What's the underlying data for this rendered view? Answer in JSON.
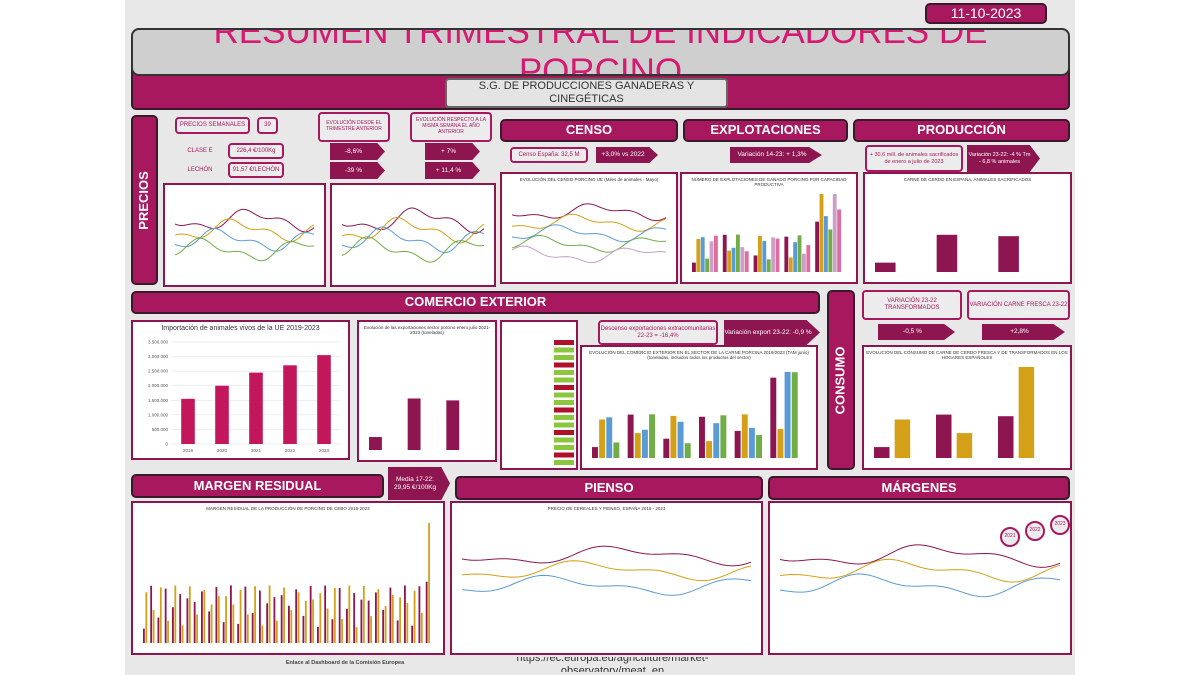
{
  "header": {
    "date": "11-10-2023",
    "title": "RESUMEN TRIMESTRAL DE INDICADORES DE PORCINO",
    "subtitle": "S.G. DE PRODUCCIONES GANADERAS Y CINEGÉTICAS"
  },
  "precios": {
    "section": "PRECIOS",
    "weekly_label": "PRECIOS SEMANALES",
    "week": "39",
    "quarter_label": "EVOLUCIÓN DESDE EL TRIMESTRE ANTERIOR",
    "year_label": "EVOLUCIÓN RESPECTO A LA MISMA SEMANA EL AÑO ANTERIOR",
    "rows": [
      {
        "label": "CLASE E",
        "price": "226,4 €/100Kg",
        "quarter": "-8,6%",
        "year": "+ 7%"
      },
      {
        "label": "LECHÓN",
        "price": "91,57 €/LECHÓN",
        "quarter": "-39 %",
        "year": "+ 11,4 %"
      }
    ]
  },
  "censo": {
    "section": "CENSO",
    "census": "Censo España: 32,5 M",
    "change": "+3,0% vs 2022",
    "chart_title": "EVOLUCIÓN DEL CENSO PORCINO UE (Miles de animales - Mayo)"
  },
  "explotaciones": {
    "section": "EXPLOTACIONES",
    "change": "Variación 14-23: + 1,3%",
    "chart_title": "NÚMERO DE EXPLOTACIONES DE GANADO PORCINO POR CAPACIDAD PRODUCTIVA"
  },
  "produccion": {
    "section": "PRODUCCIÓN",
    "sacrificio": "+ 30,6 mill. de animales sacrificados de enero a julio de 2023",
    "change": "Variación 23-22: -4 % Tm - 6,8 % animales",
    "chart_title": "CARNE DE CERDO EN ESPAÑA, ANIMALES SACRIFICADOS"
  },
  "comercio": {
    "section": "COMERCIO EXTERIOR",
    "export_title": "Evolución de las exportaciones sector porcino enero julio 2021-2023 (toneladas)",
    "descenso": "Descenso exportaciones extracomunitarias 22-23 = -16,4%",
    "variacion": "Variación export 23-22: -0,9 %",
    "chart_title": "EVOLUCIÓN DEL COMERCIO EXTERIOR EN EL SECTOR DE LA CARNE PORCINA 2019/2023 (TAM junio) (toneladas, incluidos todos los productos del sector)"
  },
  "consumo": {
    "section": "CONSUMO",
    "transformados_label": "VARIACIÓN 23-22 TRANSFORMADOS",
    "transformados": "-0,5 %",
    "fresca_label": "VARIACIÓN CARNE FRESCA 23-22",
    "fresca": "+2,8%",
    "chart_title": "EVOLUCIÓN DEL CONSUMO DE CARNE DE CERDO FRESCA Y DE TRANSFORMADOS EN LOS HOGARES ESPAÑOLES"
  },
  "margen": {
    "section": "MARGEN RESIDUAL",
    "media": "Media 17-22: 29,95 €/100Kg",
    "chart_title": "MARGEN RESIDUAL DE LA PRODUCCIÓN DE PORCINO DE CEBO 2016-2023"
  },
  "pienso": {
    "section": "PIENSO",
    "chart_title": "PRECIO DE CEREALES Y PIENSO, ESPAÑA 2016 - 2023"
  },
  "margenes": {
    "section": "MÁRGENES",
    "years": [
      "2021",
      "2022",
      "2023"
    ]
  },
  "footer": {
    "link": "Enlace al Dashboard de la Comisión Europea",
    "url": "https://ec.europa.eu/agriculture/market-observatory/meat_en"
  },
  "chart_data": {
    "type": "bar",
    "title": "Importación de animales vivos de la UE 2019-2023",
    "categories": [
      "2019",
      "2020",
      "2021",
      "2022",
      "2023"
    ],
    "values": [
      1550000,
      2000000,
      2450000,
      2700000,
      3050000
    ],
    "color": "#c2185b",
    "ylim": [
      0,
      3500000
    ],
    "yticks": [
      0,
      {
        "value": 500000,
        "label": "500.000"
      },
      {
        "value": 1000000,
        "label": "1.000.000"
      },
      {
        "value": 1500000,
        "label": "1.500.000"
      },
      {
        "value": 2000000,
        "label": "2.000.000"
      },
      {
        "value": 2500000,
        "label": "2.500.000"
      },
      {
        "value": 3000000,
        "label": "3.000.000"
      },
      {
        "value": 3500000,
        "label": "3.500.000"
      }
    ],
    "grid": true
  }
}
